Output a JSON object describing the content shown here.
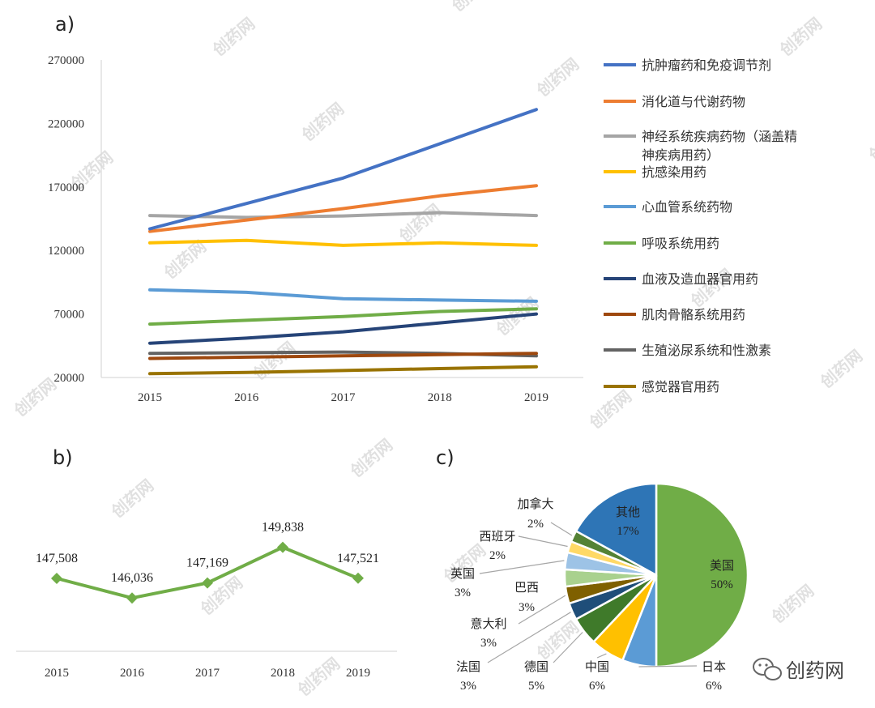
{
  "brand": {
    "name": "创药网"
  },
  "colors": {
    "axis": "#d9d9d9",
    "b_series": "#70ad47",
    "pie_usa": "#70ad47",
    "pie_japan": "#5b9bd5",
    "pie_china": "#ffc000",
    "pie_germany": "#3f7a2a",
    "pie_france": "#1f4e79",
    "pie_italy": "#7f6000",
    "pie_brazil": "#a9d18e",
    "pie_uk": "#9dc3e6",
    "pie_spain": "#ffd966",
    "pie_canada": "#548235",
    "pie_other": "#2e75b6"
  },
  "chart_data": [
    {
      "id": "a",
      "panel_label": "a)",
      "type": "line",
      "x": [
        "2015",
        "2016",
        "2017",
        "2018",
        "2019"
      ],
      "ylim": [
        20000,
        270000
      ],
      "yticks": [
        "20000",
        "70000",
        "120000",
        "170000",
        "220000",
        "270000"
      ],
      "ytick_values": [
        20000,
        70000,
        120000,
        170000,
        220000,
        270000
      ],
      "legend_position": "right",
      "series": [
        {
          "name": "抗肿瘤药和免疫调节剂",
          "color": "#4472c4",
          "values": [
            137000,
            157000,
            177000,
            204000,
            231000
          ]
        },
        {
          "name": "消化道与代谢药物",
          "color": "#ed7d31",
          "values": [
            135000,
            144000,
            153000,
            163000,
            171000
          ]
        },
        {
          "name": "神经系统疾病药物（涵盖精神疾病用药）",
          "legend_lines": [
            "神经系统疾病药物（涵盖精",
            "神疾病用药）"
          ],
          "color": "#a5a5a5",
          "values": [
            147500,
            146000,
            147200,
            149800,
            147500
          ]
        },
        {
          "name": "抗感染用药",
          "color": "#ffc000",
          "values": [
            126000,
            128000,
            124000,
            126000,
            124000
          ]
        },
        {
          "name": "心血管系统药物",
          "color": "#5b9bd5",
          "values": [
            89000,
            87000,
            82000,
            81000,
            80000
          ]
        },
        {
          "name": "呼吸系统用药",
          "color": "#70ad47",
          "values": [
            62000,
            65000,
            68000,
            72000,
            74000
          ]
        },
        {
          "name": "血液及造血器官用药",
          "color": "#264478",
          "values": [
            47000,
            51000,
            56000,
            63000,
            70000
          ]
        },
        {
          "name": "肌肉骨骼系统用药",
          "color": "#9e480e",
          "values": [
            35000,
            36000,
            37000,
            38000,
            39000
          ]
        },
        {
          "name": "生殖泌尿系统和性激素",
          "color": "#636363",
          "values": [
            39000,
            39500,
            40000,
            39000,
            37000
          ]
        },
        {
          "name": "感觉器官用药",
          "color": "#997300",
          "values": [
            23000,
            24000,
            25500,
            27000,
            28500
          ]
        }
      ]
    },
    {
      "id": "b",
      "panel_label": "b)",
      "type": "line",
      "x": [
        "2015",
        "2016",
        "2017",
        "2018",
        "2019"
      ],
      "values": [
        147508,
        146036,
        147169,
        149838,
        147521
      ],
      "data_labels": [
        "147,508",
        "146,036",
        "147,169",
        "149,838",
        "147,521"
      ],
      "ylim": [
        143500,
        152000
      ],
      "marker": "diamond"
    },
    {
      "id": "c",
      "panel_label": "c)",
      "type": "pie",
      "slices": [
        {
          "name": "美国",
          "pct": "50%",
          "value": 50,
          "color_key": "pie_usa"
        },
        {
          "name": "日本",
          "pct": "6%",
          "value": 6,
          "color_key": "pie_japan"
        },
        {
          "name": "中国",
          "pct": "6%",
          "value": 6,
          "color_key": "pie_china"
        },
        {
          "name": "德国",
          "pct": "5%",
          "value": 5,
          "color_key": "pie_germany"
        },
        {
          "name": "法国",
          "pct": "3%",
          "value": 3,
          "color_key": "pie_france"
        },
        {
          "name": "意大利",
          "pct": "3%",
          "value": 3,
          "color_key": "pie_italy"
        },
        {
          "name": "巴西",
          "pct": "3%",
          "value": 3,
          "color_key": "pie_brazil"
        },
        {
          "name": "英国",
          "pct": "3%",
          "value": 3,
          "color_key": "pie_uk"
        },
        {
          "name": "西班牙",
          "pct": "2%",
          "value": 2,
          "color_key": "pie_spain"
        },
        {
          "name": "加拿大",
          "pct": "2%",
          "value": 2,
          "color_key": "pie_canada"
        },
        {
          "name": "其他",
          "pct": "17%",
          "value": 17,
          "color_key": "pie_other"
        }
      ]
    }
  ]
}
